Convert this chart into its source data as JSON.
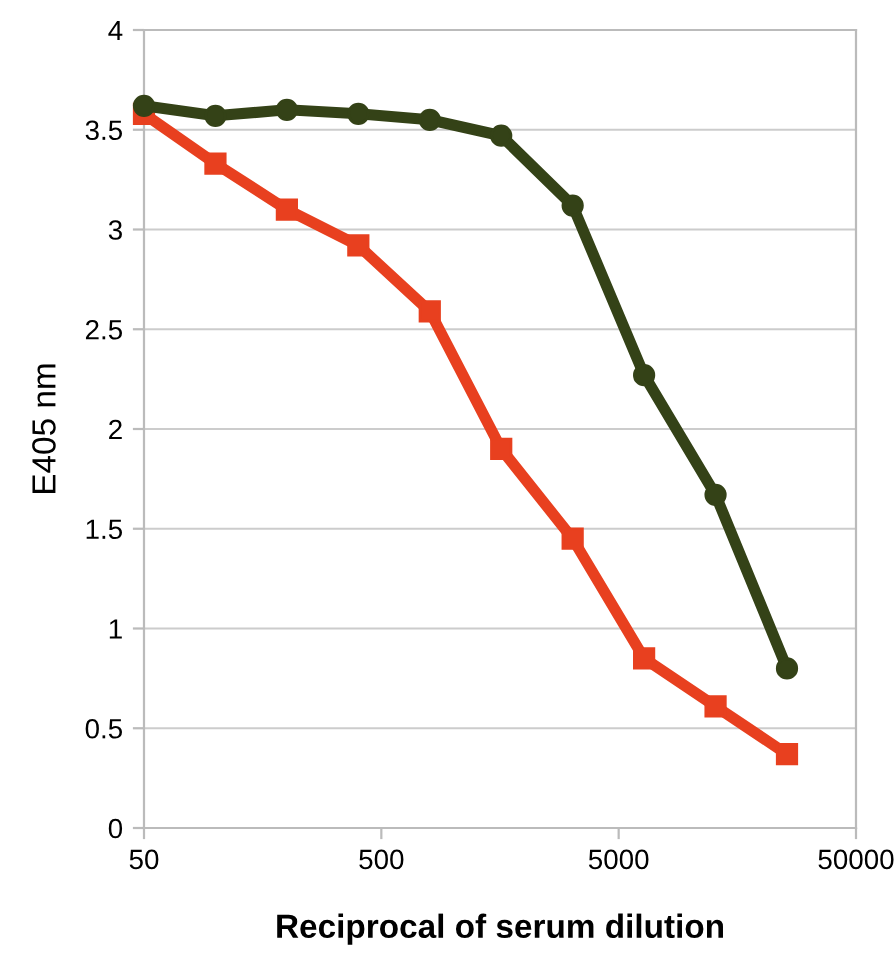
{
  "chart_data": {
    "type": "line",
    "xlabel": "Reciprocal of serum dilution",
    "ylabel": "E405 nm",
    "log": "x",
    "x": [
      50,
      100,
      200,
      400,
      800,
      1600,
      3200,
      6400,
      12800,
      25600
    ],
    "series": [
      {
        "color": "#344217",
        "marker": "circle",
        "values": [
          3.62,
          3.57,
          3.6,
          3.58,
          3.55,
          3.47,
          3.12,
          2.27,
          1.67,
          0.8
        ]
      },
      {
        "color": "#e8401f",
        "marker": "square",
        "values": [
          3.58,
          3.33,
          3.1,
          2.92,
          2.59,
          1.9,
          1.45,
          0.85,
          0.61,
          0.37
        ]
      }
    ],
    "xlim": [
      50,
      50000
    ],
    "xticks": [
      50,
      500,
      5000,
      50000
    ],
    "ylim": [
      0,
      4
    ],
    "yticks": [
      0,
      0.5,
      1,
      1.5,
      2,
      2.5,
      3,
      3.5,
      4
    ],
    "grid": "y",
    "legend": false
  }
}
